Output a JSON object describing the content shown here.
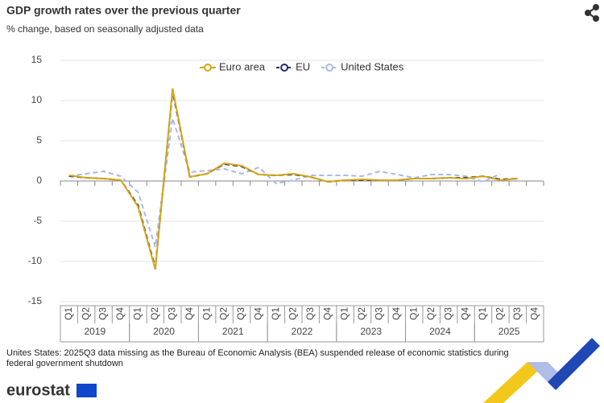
{
  "chart_data": {
    "type": "line",
    "title": "GDP growth rates over the previous quarter",
    "subtitle": "% change, based on seasonally adjusted data",
    "categories": [
      "Q1",
      "Q2",
      "Q3",
      "Q4",
      "Q1",
      "Q2",
      "Q3",
      "Q4",
      "Q1",
      "Q2",
      "Q3",
      "Q4",
      "Q1",
      "Q2",
      "Q3",
      "Q4",
      "Q1",
      "Q2",
      "Q3",
      "Q4",
      "Q1",
      "Q2",
      "Q3",
      "Q4",
      "Q1",
      "Q2",
      "Q3",
      "Q4"
    ],
    "years": [
      "2019",
      "2020",
      "2021",
      "2022",
      "2023",
      "2024",
      "2025"
    ],
    "ylim": [
      -15,
      15
    ],
    "yticks": [
      -15,
      -10,
      -5,
      0,
      5,
      10,
      15
    ],
    "grid": true,
    "series": [
      {
        "name": "Euro area",
        "color": "#d4a514",
        "dash": "solid",
        "values": [
          0.7,
          0.4,
          0.3,
          0.1,
          -3.2,
          -11.0,
          11.5,
          0.5,
          0.9,
          2.2,
          1.9,
          0.8,
          0.7,
          0.9,
          0.5,
          -0.1,
          0.1,
          0.2,
          0.1,
          0.1,
          0.3,
          0.3,
          0.4,
          0.3,
          0.6,
          0.1,
          0.3,
          null
        ]
      },
      {
        "name": "EU",
        "color": "#1f2d6b",
        "dash": "dashed",
        "values": [
          0.6,
          0.4,
          0.3,
          0.1,
          -3.0,
          -10.8,
          11.2,
          0.5,
          0.9,
          2.1,
          1.8,
          0.8,
          0.7,
          0.8,
          0.5,
          -0.1,
          0.1,
          0.1,
          0.1,
          0.1,
          0.3,
          0.3,
          0.4,
          0.4,
          0.6,
          0.2,
          0.3,
          null
        ]
      },
      {
        "name": "United States",
        "color": "#a9b8e8",
        "dash": "dashed",
        "values": [
          0.6,
          0.9,
          1.2,
          0.6,
          -1.4,
          -8.2,
          7.8,
          1.1,
          1.3,
          1.5,
          0.9,
          1.7,
          -0.3,
          0.1,
          0.7,
          0.7,
          0.7,
          0.6,
          1.2,
          0.8,
          0.4,
          0.8,
          0.8,
          0.6,
          -0.1,
          0.9,
          null,
          null
        ]
      }
    ],
    "note": "Unites States: 2025Q3 data missing as the Bureau of Economic Analysis (BEA) suspended release of economic statistics during federal government shutdown",
    "source": "eurostat"
  }
}
